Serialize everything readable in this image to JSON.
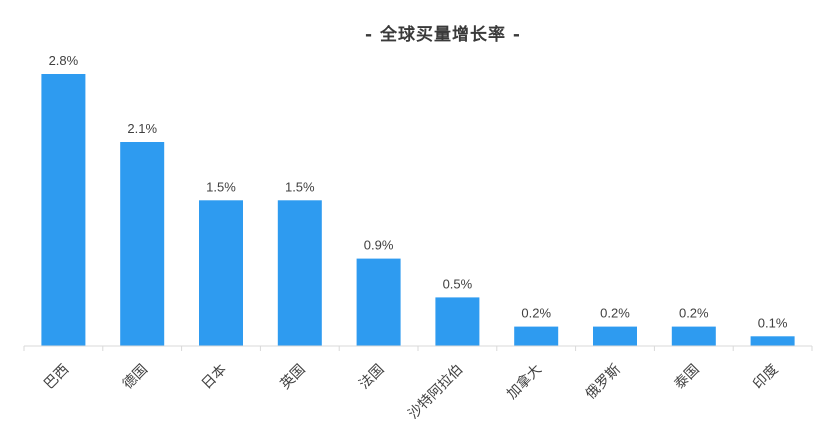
{
  "chart_data": {
    "type": "bar",
    "title": "- 全球买量增长率 -",
    "categories": [
      "巴西",
      "德国",
      "日本",
      "英国",
      "法国",
      "沙特阿拉伯",
      "加拿大",
      "俄罗斯",
      "泰国",
      "印度"
    ],
    "values": [
      2.8,
      2.1,
      1.5,
      1.5,
      0.9,
      0.5,
      0.2,
      0.2,
      0.2,
      0.1
    ],
    "data_labels": [
      "2.8%",
      "2.1%",
      "1.5%",
      "1.5%",
      "0.9%",
      "0.5%",
      "0.2%",
      "0.2%",
      "0.2%",
      "0.1%"
    ],
    "ylim": [
      0,
      2.8
    ],
    "grid": false,
    "legend": "none",
    "bar_color": "#2E9BF0",
    "axis_color": "#D9D9D9",
    "text_color": "#404040"
  }
}
